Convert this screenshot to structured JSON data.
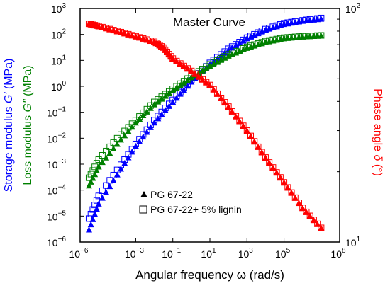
{
  "chart_data": {
    "type": "scatter",
    "title": "Master Curve",
    "xlabel": "Angular frequency  ω  (rad/s)",
    "ylabel_left": {
      "line1": {
        "text": "Storage modulus ",
        "symbol": "G′",
        "unit": " (MPa)",
        "color": "#0000ff"
      },
      "line2": {
        "text": "Loss modulus ",
        "symbol": "G″",
        "unit": " (MPa)",
        "color": "#008000"
      }
    },
    "ylabel_right": {
      "text": "Phase angle  ",
      "symbol": "δ",
      "unit": "  (°)",
      "color": "#ff0000"
    },
    "x_scale": "log",
    "x_ticks": [
      1e-06,
      0.001,
      0.1,
      10,
      1000.0,
      100000.0,
      100000000.0
    ],
    "x_tick_labels": [
      {
        "base": "10",
        "exp": "−6"
      },
      {
        "base": "10",
        "exp": "−3"
      },
      {
        "base": "10",
        "exp": "−1"
      },
      {
        "base": "10",
        "exp": "1"
      },
      {
        "base": "10",
        "exp": "3"
      },
      {
        "base": "10",
        "exp": "5"
      },
      {
        "base": "10",
        "exp": "8"
      }
    ],
    "xlim": [
      1e-06,
      100000000.0
    ],
    "y_left_scale": "log",
    "ylim_left": [
      1e-06,
      1000.0
    ],
    "y_left_tick_labels": [
      {
        "base": "10",
        "exp": "−6"
      },
      {
        "base": "10",
        "exp": "−5"
      },
      {
        "base": "10",
        "exp": "−4"
      },
      {
        "base": "10",
        "exp": "−3"
      },
      {
        "base": "10",
        "exp": "−2"
      },
      {
        "base": "10",
        "exp": "−1"
      },
      {
        "base": "10",
        "exp": "0"
      },
      {
        "base": "10",
        "exp": "1"
      },
      {
        "base": "10",
        "exp": "2"
      },
      {
        "base": "10",
        "exp": "3"
      }
    ],
    "y_right_scale": "log",
    "ylim_right": [
      10,
      100
    ],
    "y_right_tick_labels": [
      {
        "base": "10",
        "exp": "1"
      },
      {
        "base": "10",
        "exp": "2"
      }
    ],
    "legend": {
      "position": "lower-left",
      "entries": [
        {
          "label": "PG 67-22",
          "marker": "filled-triangle"
        },
        {
          "label": "PG 67-22+ 5% lignin",
          "marker": "open-square"
        }
      ]
    },
    "colors": {
      "storage": "#0000ff",
      "loss": "#008000",
      "phase": "#ff0000",
      "axes": "#000000"
    },
    "series": [
      {
        "quantity": "G′",
        "axis": "left",
        "color": "#0000ff",
        "legend_entry": "PG 67-22",
        "marker": "filled-triangle",
        "x": [
          3e-06,
          1e-05,
          0.0001,
          0.001,
          0.01,
          0.1,
          1,
          10,
          100,
          1000.0,
          10000.0,
          100000.0,
          1000000.0,
          10000000.0
        ],
        "values": [
          3e-06,
          3e-05,
          0.0004,
          0.005,
          0.04,
          0.25,
          1.5,
          7,
          25,
          70,
          150,
          250,
          330,
          400
        ]
      },
      {
        "quantity": "G′",
        "axis": "left",
        "color": "#0000ff",
        "legend_entry": "PG 67-22+ 5% lignin",
        "marker": "open-square",
        "x": [
          3e-06,
          1e-05,
          0.0001,
          0.001,
          0.01,
          0.1,
          1,
          10,
          100,
          1000.0,
          10000.0,
          100000.0,
          1000000.0,
          10000000.0
        ],
        "values": [
          8e-06,
          6e-05,
          0.0006,
          0.006,
          0.05,
          0.3,
          1.7,
          8,
          28,
          75,
          160,
          270,
          350,
          430
        ]
      },
      {
        "quantity": "G″",
        "axis": "left",
        "color": "#008000",
        "legend_entry": "PG 67-22",
        "marker": "filled-triangle",
        "x": [
          3e-06,
          1e-05,
          0.0001,
          0.001,
          0.01,
          0.1,
          1,
          10,
          100,
          1000.0,
          10000.0,
          100000.0,
          1000000.0,
          10000000.0
        ],
        "values": [
          0.00015,
          0.0008,
          0.006,
          0.04,
          0.2,
          0.7,
          2.2,
          6,
          15,
          30,
          50,
          70,
          82,
          90
        ]
      },
      {
        "quantity": "G″",
        "axis": "left",
        "color": "#008000",
        "legend_entry": "PG 67-22+ 5% lignin",
        "marker": "open-square",
        "x": [
          3e-06,
          1e-05,
          0.0001,
          0.001,
          0.01,
          0.1,
          1,
          10,
          100,
          1000.0,
          10000.0,
          100000.0,
          1000000.0,
          10000000.0
        ],
        "values": [
          0.0003,
          0.0015,
          0.01,
          0.05,
          0.25,
          0.8,
          2.5,
          7,
          17,
          33,
          55,
          75,
          85,
          92
        ]
      },
      {
        "quantity": "δ",
        "axis": "right",
        "color": "#ff0000",
        "legend_entry": "PG 67-22",
        "marker": "filled-triangle",
        "x": [
          3e-06,
          1e-05,
          0.0001,
          0.001,
          0.01,
          0.03,
          0.1,
          1,
          10,
          100,
          1000.0,
          10000.0,
          100000.0,
          1000000.0,
          10000000.0
        ],
        "values": [
          86,
          84,
          80,
          76,
          72,
          68,
          61,
          54,
          47,
          38,
          30,
          23,
          18,
          14,
          11.5
        ]
      },
      {
        "quantity": "δ",
        "axis": "right",
        "color": "#ff0000",
        "legend_entry": "PG 67-22+ 5% lignin",
        "marker": "open-square",
        "x": [
          3e-06,
          1e-05,
          0.0001,
          0.001,
          0.01,
          0.03,
          0.1,
          1,
          10,
          100,
          1000.0,
          10000.0,
          100000.0,
          1000000.0,
          10000000.0
        ],
        "values": [
          86,
          84,
          80,
          76,
          72,
          68,
          61,
          54,
          47,
          38,
          30,
          23,
          18,
          14,
          11.5
        ]
      }
    ]
  }
}
